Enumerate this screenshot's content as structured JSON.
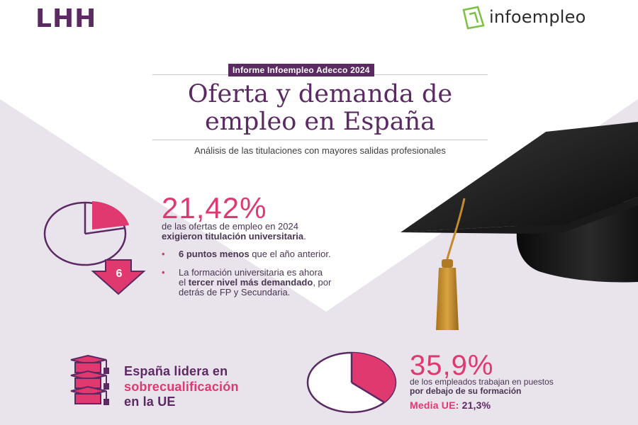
{
  "header": {
    "brand_left": "LHH",
    "brand_right": "infoempleo"
  },
  "report": {
    "tag": "Informe Infoempleo Adecco 2024",
    "title_line1": "Oferta y demanda de",
    "title_line2": "empleo en España",
    "subtitle": "Análisis de las  titulaciones con mayores salidas profesionales"
  },
  "stat_university": {
    "value": "21,42%",
    "pie_fraction": 0.2142,
    "line1": "de las ofertas de empleo en 2024",
    "line2_bold": "exigieron titulación universitaria",
    "line2_tail": ".",
    "drop_number": "6",
    "bullets": [
      {
        "bold": "6 puntos menos",
        "text": " que el año anterior."
      },
      {
        "line1": "La formación universitaria es ahora",
        "pre": "el ",
        "bold": "tercer nivel más demandado",
        "post": ", por",
        "line3": "detrás de FP y Secundaria."
      }
    ]
  },
  "overqualification": {
    "line1": "España lidera en",
    "line2": "sobrecualificación",
    "line3": "en la UE"
  },
  "stat_overqualified": {
    "value": "35,9%",
    "pie_fraction": 0.359,
    "line1": "de los empleados trabajan en puestos",
    "line2_bold": "por debajo de su formación",
    "eu_label": "Media UE:",
    "eu_value": "21,3%"
  },
  "colors": {
    "purple": "#5b2a63",
    "pink": "#e0396f",
    "lavender": "#e9e3ec"
  },
  "icons": [
    "pie-chart-icon",
    "down-arrow-icon",
    "graduation-cap-illustration",
    "books-stack-icon",
    "infoempleo-logo-icon"
  ]
}
